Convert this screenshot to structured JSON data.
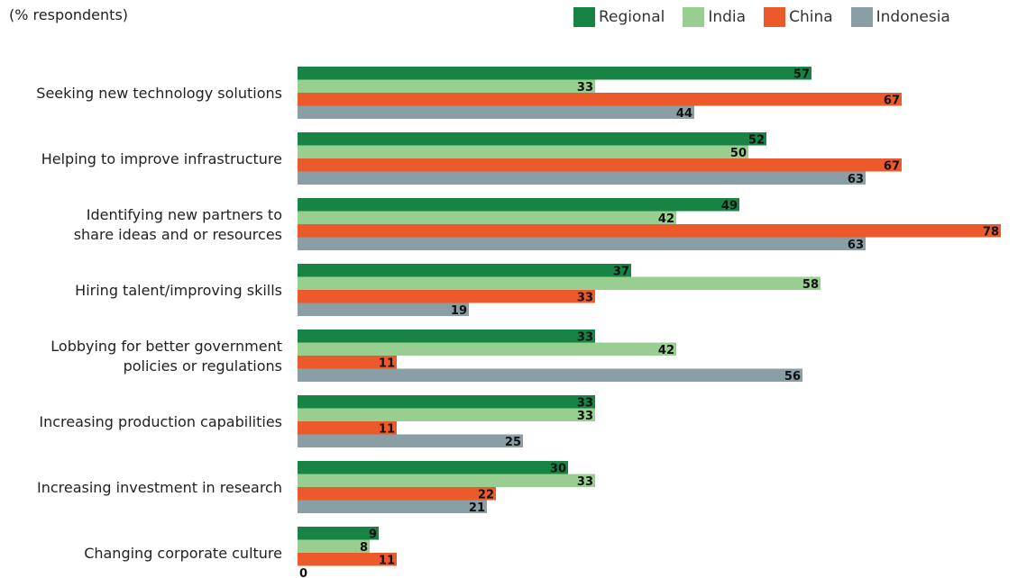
{
  "subtitle": "(% respondents)",
  "chart_data": {
    "type": "bar",
    "orientation": "horizontal",
    "title": "",
    "subtitle": "(% respondents)",
    "xlabel": "",
    "ylabel": "",
    "xlim": [
      0,
      78
    ],
    "grid": false,
    "legend_position": "top-right",
    "categories": [
      [
        "Seeking new technology solutions"
      ],
      [
        "Helping to improve infrastructure"
      ],
      [
        "Identifying new partners to",
        "share ideas and or resources"
      ],
      [
        "Hiring talent/improving skills"
      ],
      [
        "Lobbying for better government",
        "policies or regulations"
      ],
      [
        "Increasing production capabilities"
      ],
      [
        "Increasing investment in research"
      ],
      [
        "Changing corporate culture"
      ]
    ],
    "series": [
      {
        "name": "Regional",
        "color": "#178445",
        "values": [
          57,
          52,
          49,
          37,
          33,
          33,
          30,
          9
        ]
      },
      {
        "name": "India",
        "color": "#98cf91",
        "values": [
          33,
          50,
          42,
          58,
          42,
          33,
          33,
          8
        ]
      },
      {
        "name": "China",
        "color": "#ec5a2b",
        "values": [
          67,
          67,
          78,
          33,
          11,
          11,
          22,
          11
        ]
      },
      {
        "name": "Indonesia",
        "color": "#899ea5",
        "values": [
          44,
          63,
          63,
          19,
          56,
          25,
          21,
          0
        ]
      }
    ]
  }
}
